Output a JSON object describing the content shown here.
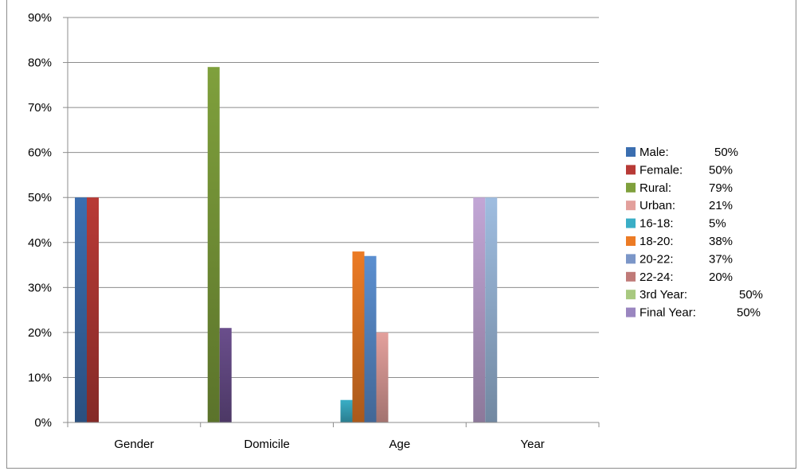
{
  "chart_data": {
    "type": "bar",
    "categories": [
      "Gender",
      "Domicile",
      "Age",
      "Year"
    ],
    "ylim": [
      0,
      90
    ],
    "yticks": [
      0,
      10,
      20,
      30,
      40,
      50,
      60,
      70,
      80,
      90
    ],
    "ytick_labels": [
      "0%",
      "10%",
      "20%",
      "30%",
      "40%",
      "50%",
      "60%",
      "70%",
      "80%",
      "90%"
    ],
    "grid": true,
    "legend_position": "right",
    "bars": [
      {
        "category": "Gender",
        "value": 50,
        "color": "#3b6eb0"
      },
      {
        "category": "Gender",
        "value": 50,
        "color": "#b83a36"
      },
      {
        "category": "Domicile",
        "value": 79,
        "color": "#7fa03c"
      },
      {
        "category": "Domicile",
        "value": 21,
        "color": "#6a4e8c"
      },
      {
        "category": "Age",
        "value": 5,
        "color": "#3aaec6"
      },
      {
        "category": "Age",
        "value": 38,
        "color": "#ec7b25"
      },
      {
        "category": "Age",
        "value": 37,
        "color": "#5b8fd0"
      },
      {
        "category": "Age",
        "value": 20,
        "color": "#e3a09c"
      },
      {
        "category": "Year",
        "value": 50,
        "color": "#c2a6d6"
      },
      {
        "category": "Year",
        "value": 50,
        "color": "#9fbde0"
      }
    ],
    "legend": [
      {
        "label": "Male:",
        "value_text": "50%",
        "color": "#3b6eb0"
      },
      {
        "label": "Female:",
        "value_text": "50%",
        "color": "#b83a36"
      },
      {
        "label": "Rural:",
        "value_text": "79%",
        "color": "#7fa03c"
      },
      {
        "label": "Urban:",
        "value_text": "21%",
        "color": "#e3a09c"
      },
      {
        "label": "16-18:",
        "value_text": "5%",
        "color": "#3aaec6"
      },
      {
        "label": "18-20:",
        "value_text": "38%",
        "color": "#ec7b25"
      },
      {
        "label": "20-22:",
        "value_text": "37%",
        "color": "#7b96c8"
      },
      {
        "label": "22-24:",
        "value_text": "20%",
        "color": "#c07a78"
      },
      {
        "label": "3rd Year:",
        "value_text": "50%",
        "color": "#a8c980"
      },
      {
        "label": "Final Year:",
        "value_text": "50%",
        "color": "#9a86c0"
      }
    ]
  }
}
